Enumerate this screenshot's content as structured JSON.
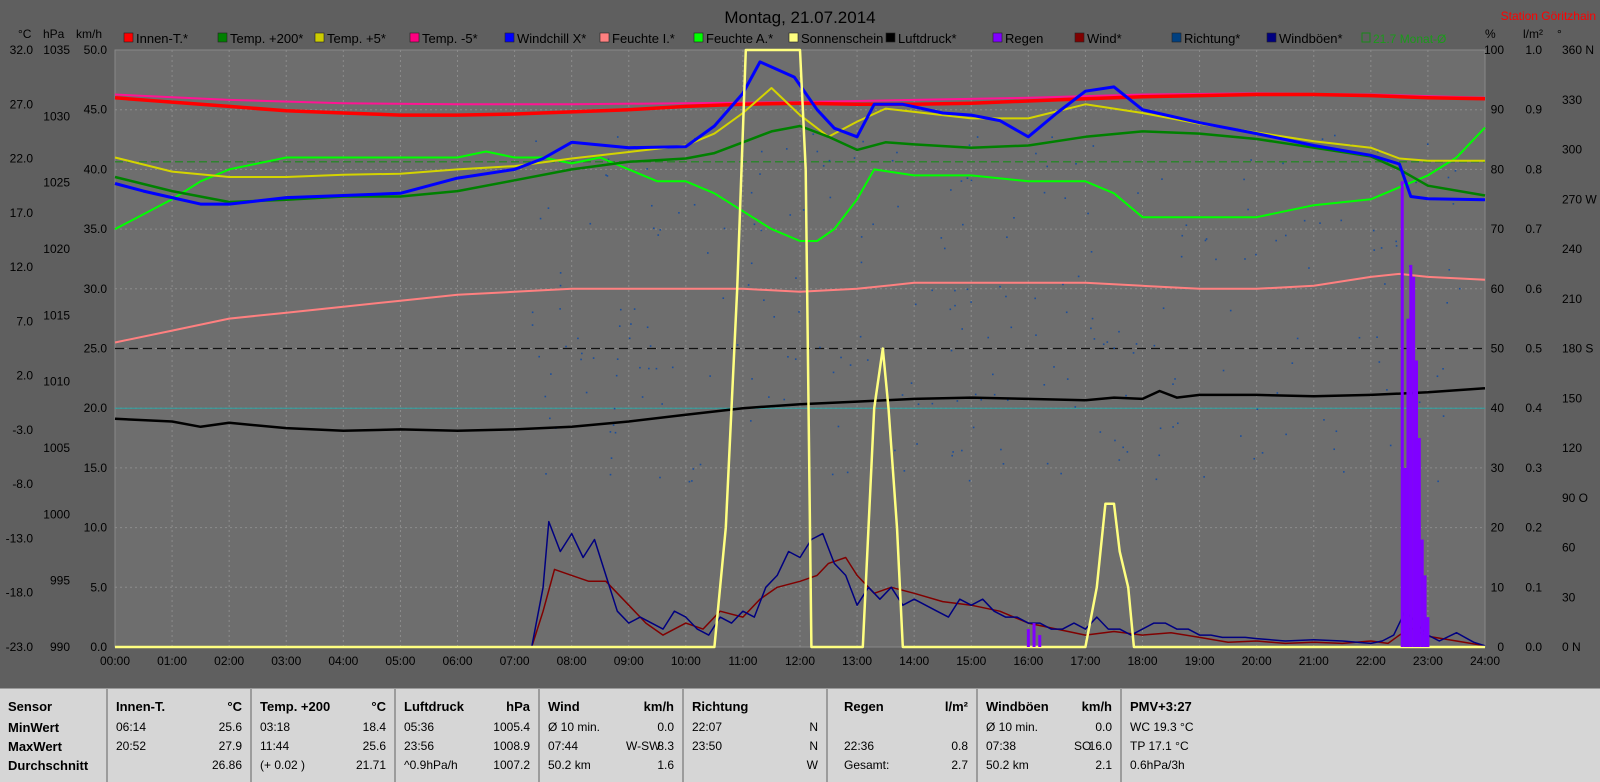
{
  "chart_data": {
    "type": "line",
    "title": "Montag, 21.07.2014",
    "station": "Station Göritzhain",
    "x_ticks": [
      "00:00",
      "01:00",
      "02:00",
      "03:00",
      "04:00",
      "05:00",
      "06:00",
      "07:00",
      "08:00",
      "09:00",
      "10:00",
      "11:00",
      "12:00",
      "13:00",
      "14:00",
      "15:00",
      "16:00",
      "17:00",
      "18:00",
      "19:00",
      "20:00",
      "21:00",
      "22:00",
      "23:00",
      "24:00"
    ],
    "axes": {
      "temp": {
        "unit": "°C",
        "ticks": [
          "32.0",
          "27.0",
          "22.0",
          "17.0",
          "12.0",
          "7.0",
          "2.0",
          "-3.0",
          "-8.0",
          "-13.0",
          "-18.0",
          "-23.0"
        ],
        "range": [
          -23,
          32
        ]
      },
      "pressure": {
        "unit": "hPa",
        "ticks": [
          "1035",
          "1030",
          "1025",
          "1020",
          "1015",
          "1010",
          "1005",
          "1000",
          "995",
          "990"
        ],
        "range": [
          990,
          1035
        ]
      },
      "wind": {
        "unit": "km/h",
        "ticks": [
          "50.0",
          "45.0",
          "40.0",
          "35.0",
          "30.0",
          "25.0",
          "20.0",
          "15.0",
          "10.0",
          "5.0",
          "0.0"
        ],
        "range": [
          0,
          50
        ]
      },
      "humidity": {
        "unit": "%",
        "ticks": [
          "100",
          "90",
          "80",
          "70",
          "60",
          "50",
          "40",
          "30",
          "20",
          "10",
          "0"
        ],
        "range": [
          0,
          100
        ]
      },
      "rain": {
        "unit": "l/m²",
        "ticks": [
          "1.0",
          "0.9",
          "0.8",
          "0.7",
          "0.6",
          "0.5",
          "0.4",
          "0.3",
          "0.2",
          "0.1",
          "0.0"
        ],
        "range": [
          0,
          1
        ]
      },
      "direction": {
        "unit": "°",
        "ticks": [
          "360 N",
          "330",
          "300",
          "270 W",
          "240",
          "210",
          "180 S",
          "150",
          "120",
          "90 O",
          "60",
          "30",
          "0 N"
        ],
        "range": [
          0,
          360
        ]
      }
    },
    "legend": [
      {
        "name": "Innen-T.*",
        "color": "#ff0000"
      },
      {
        "name": "Temp. +200*",
        "color": "#008000"
      },
      {
        "name": "Temp. +5*",
        "color": "#cccc00"
      },
      {
        "name": "Temp. -5*",
        "color": "#ff0080"
      },
      {
        "name": "Windchill X*",
        "color": "#0000ff"
      },
      {
        "name": "Feuchte I.*",
        "color": "#ff8080"
      },
      {
        "name": "Feuchte A.*",
        "color": "#00ff00"
      },
      {
        "name": "Sonnenschein",
        "color": "#ffff80"
      },
      {
        "name": "Luftdruck*",
        "color": "#000000"
      },
      {
        "name": "Regen",
        "color": "#8000ff"
      },
      {
        "name": "Wind*",
        "color": "#800000"
      },
      {
        "name": "Richtung*",
        "color": "#004080"
      },
      {
        "name": "Windböen*",
        "color": "#000080"
      }
    ],
    "monthly_avg_label": "21.7 Monat-Ø",
    "monthly_avg_temp": 21.7,
    "series": [
      {
        "name": "Innen-T.*",
        "axis": "temp",
        "color": "#ff0000",
        "width": 3.5,
        "x": [
          0,
          1,
          2,
          3,
          4,
          5,
          6,
          7,
          8,
          9,
          10,
          11,
          12,
          13,
          14,
          15,
          16,
          17,
          18,
          19,
          20,
          21,
          22,
          23,
          24
        ],
        "y": [
          27.6,
          27.2,
          26.8,
          26.4,
          26.2,
          26.0,
          26.0,
          26.1,
          26.3,
          26.5,
          26.8,
          27.0,
          27.1,
          27.0,
          27.0,
          27.1,
          27.3,
          27.5,
          27.7,
          27.8,
          27.9,
          27.9,
          27.8,
          27.6,
          27.5
        ]
      },
      {
        "name": "Temp. -5*",
        "axis": "temp",
        "color": "#ff1493",
        "width": 2,
        "x": [
          0,
          2,
          4,
          6,
          8,
          10,
          12,
          14,
          16,
          18,
          20,
          22,
          24
        ],
        "y": [
          27.9,
          27.4,
          27.1,
          27.0,
          27.0,
          27.1,
          27.2,
          27.4,
          27.6,
          27.9,
          28.0,
          27.9,
          27.6
        ]
      },
      {
        "name": "Temp. +200*",
        "axis": "temp",
        "color": "#008000",
        "width": 2.5,
        "x": [
          0,
          1,
          2,
          3,
          4,
          5,
          6,
          7,
          8,
          9,
          10,
          10.5,
          11,
          11.5,
          12,
          12.5,
          13,
          13.5,
          14,
          15,
          16,
          17,
          18,
          19,
          20,
          21,
          22,
          22.5,
          23,
          24
        ],
        "y": [
          20.3,
          19.0,
          18.0,
          18.2,
          18.5,
          18.5,
          19.0,
          20.0,
          21.0,
          21.7,
          22.0,
          22.5,
          23.5,
          24.5,
          25.0,
          24.0,
          22.8,
          23.5,
          23.3,
          23.0,
          23.2,
          24.0,
          24.5,
          24.3,
          23.8,
          23.0,
          22.2,
          21.0,
          19.5,
          18.6
        ]
      },
      {
        "name": "Temp. +5*",
        "axis": "temp",
        "color": "#d4d400",
        "width": 2,
        "x": [
          0,
          1,
          2,
          3,
          4,
          5,
          6,
          7,
          8,
          9,
          10,
          10.5,
          11,
          11.5,
          12,
          12.5,
          13,
          13.5,
          14,
          15,
          16,
          17,
          18,
          19,
          20,
          21,
          22,
          22.5,
          23,
          24
        ],
        "y": [
          22.1,
          20.8,
          20.3,
          20.3,
          20.5,
          20.6,
          21.0,
          21.3,
          22.0,
          22.6,
          23.2,
          24.3,
          26.2,
          28.5,
          26.0,
          24.0,
          25.4,
          26.6,
          26.3,
          25.7,
          25.7,
          27.0,
          26.2,
          25.2,
          24.4,
          23.6,
          23.0,
          22.0,
          21.8,
          21.8
        ]
      },
      {
        "name": "Windchill X*",
        "axis": "temp",
        "color": "#0000ff",
        "width": 3,
        "x": [
          0,
          0.5,
          1,
          1.5,
          2,
          2.5,
          3,
          4,
          5,
          6,
          7,
          7.5,
          8,
          9,
          10,
          10.5,
          11,
          11.3,
          11.6,
          11.9,
          12.3,
          12.6,
          13,
          13.3,
          13.8,
          14.5,
          15,
          15.5,
          16,
          16.5,
          17,
          17.5,
          18,
          19,
          20,
          21,
          22,
          22.5,
          22.7,
          23,
          24
        ],
        "y": [
          19.7,
          19.0,
          18.4,
          17.8,
          17.8,
          18.1,
          18.4,
          18.6,
          18.8,
          20.2,
          21.0,
          22.0,
          23.5,
          23.0,
          23.1,
          25.0,
          28.0,
          30.9,
          30.2,
          29.5,
          26.5,
          24.8,
          24.0,
          27.0,
          27.0,
          26.2,
          26.0,
          25.5,
          24.0,
          26.2,
          28.2,
          28.6,
          26.5,
          25.3,
          24.3,
          23.2,
          22.3,
          21.5,
          18.5,
          18.3,
          18.2
        ]
      },
      {
        "name": "Feuchte A.*",
        "axis": "humidity",
        "color": "#00ff00",
        "width": 2,
        "x": [
          0,
          1,
          1.5,
          2,
          3,
          4,
          5,
          5.5,
          6,
          6.5,
          7,
          7.5,
          8,
          8.5,
          9,
          9.5,
          10,
          10.5,
          11,
          11.5,
          12,
          12.3,
          12.6,
          13,
          13.3,
          14,
          15,
          16,
          17,
          17.5,
          18,
          19,
          20,
          21,
          22,
          22.5,
          23,
          23.5,
          24
        ],
        "y": [
          70,
          75,
          78,
          80,
          82,
          82,
          82,
          82,
          82,
          83,
          82,
          82,
          81,
          82,
          80,
          78,
          78,
          76,
          73,
          70,
          68,
          68,
          70,
          75,
          80,
          79,
          79,
          78,
          78,
          76,
          72,
          72,
          72,
          74,
          75,
          77,
          79,
          82,
          87
        ]
      },
      {
        "name": "Feuchte I.*",
        "axis": "humidity",
        "color": "#ff8080",
        "width": 2,
        "x": [
          0,
          1,
          2,
          3,
          4,
          5,
          6,
          7,
          8,
          9,
          10,
          11,
          12,
          13,
          14,
          15,
          16,
          17,
          18,
          19,
          20,
          21,
          22,
          22.5,
          23,
          24
        ],
        "y": [
          51,
          53,
          55,
          56,
          57,
          58,
          59,
          59.5,
          60,
          60,
          60,
          60,
          59.5,
          60,
          61,
          61,
          61,
          61,
          60.5,
          60,
          60,
          60.5,
          62,
          62.5,
          62,
          61.5
        ]
      },
      {
        "name": "Luftdruck*",
        "axis": "pressure",
        "color": "#000000",
        "width": 2.5,
        "x": [
          0,
          1,
          1.5,
          2,
          3,
          4,
          5,
          6,
          7,
          8,
          9,
          10,
          11,
          12,
          13,
          14,
          15,
          16,
          17,
          17.5,
          18,
          18.3,
          18.6,
          19,
          20,
          21,
          22,
          23,
          24
        ],
        "y": [
          1007.2,
          1007.0,
          1006.6,
          1006.9,
          1006.5,
          1006.3,
          1006.4,
          1006.3,
          1006.4,
          1006.6,
          1007.0,
          1007.5,
          1008.0,
          1008.3,
          1008.5,
          1008.7,
          1008.8,
          1008.7,
          1008.6,
          1008.8,
          1008.7,
          1009.3,
          1008.8,
          1009.0,
          1009.0,
          1008.9,
          1009.0,
          1009.2,
          1009.5
        ]
      },
      {
        "name": "Sonnenschein",
        "axis": "wind",
        "color": "#ffff80",
        "width": 2.5,
        "x": [
          0,
          10.5,
          10.7,
          10.9,
          11.05,
          11.2,
          11.5,
          11.8,
          12.0,
          12.1,
          12.2,
          13.1,
          13.2,
          13.3,
          13.45,
          13.55,
          13.7,
          13.8,
          14.0,
          17.0,
          17.2,
          17.35,
          17.5,
          17.6,
          17.75,
          17.85,
          18.0,
          24
        ],
        "y": [
          0,
          0,
          10,
          30,
          50,
          50,
          50,
          50,
          50,
          40,
          0,
          0,
          10,
          20,
          25,
          20,
          10,
          0,
          0,
          0,
          5,
          12,
          12,
          8,
          5,
          0,
          0,
          0
        ]
      },
      {
        "name": "Wind*",
        "axis": "wind",
        "color": "#800000",
        "width": 1.5,
        "x": [
          0,
          7.3,
          7.5,
          7.7,
          8,
          8.3,
          8.6,
          9,
          9.3,
          9.6,
          10,
          10.3,
          10.6,
          11,
          11.3,
          11.6,
          12,
          12.3,
          12.5,
          12.8,
          13,
          13.3,
          13.6,
          14,
          14.5,
          15,
          15.5,
          16,
          16.5,
          17,
          17.5,
          18,
          18.5,
          19,
          19.5,
          20,
          20.5,
          21,
          21.5,
          22,
          22.3,
          22.5,
          22.7,
          23,
          23.5,
          24
        ],
        "y": [
          0,
          0,
          3,
          6.5,
          6,
          5.5,
          5.5,
          3.5,
          2,
          1,
          2,
          1.5,
          3,
          2.5,
          4,
          5,
          5.5,
          6,
          7,
          7.5,
          6,
          4.5,
          5,
          4.5,
          3.8,
          3.5,
          3.0,
          2.0,
          1.5,
          1.0,
          1.3,
          1.0,
          1.2,
          0.8,
          0.4,
          0.5,
          0.3,
          0.4,
          0.3,
          0.5,
          0.3,
          1.0,
          1.6,
          0.9,
          0.5,
          0.1
        ]
      },
      {
        "name": "Windböen*",
        "axis": "wind",
        "color": "#000080",
        "width": 1.5,
        "x": [
          0,
          7.3,
          7.5,
          7.6,
          7.8,
          8.0,
          8.2,
          8.4,
          8.6,
          8.8,
          9.0,
          9.2,
          9.4,
          9.6,
          9.8,
          10.0,
          10.2,
          10.4,
          10.6,
          10.8,
          11.0,
          11.2,
          11.4,
          11.6,
          11.8,
          12.0,
          12.2,
          12.4,
          12.6,
          12.8,
          13.0,
          13.2,
          13.4,
          13.6,
          13.8,
          14.0,
          14.2,
          14.4,
          14.6,
          14.8,
          15.0,
          15.2,
          15.4,
          15.6,
          15.8,
          16.0,
          16.2,
          16.4,
          16.6,
          16.8,
          17.0,
          17.2,
          17.4,
          17.6,
          17.8,
          18.0,
          18.2,
          18.4,
          18.6,
          18.8,
          19.0,
          19.2,
          19.4,
          19.6,
          19.8,
          20.0,
          20.5,
          21.0,
          21.5,
          22.0,
          22.2,
          22.4,
          22.6,
          22.8,
          23.0,
          23.2,
          23.5,
          23.8,
          24
        ],
        "y": [
          0,
          0,
          5,
          10.5,
          8,
          9.5,
          7.5,
          9,
          6,
          3,
          2,
          2.5,
          2,
          1.5,
          3,
          2.5,
          1.5,
          1,
          2.5,
          2,
          3,
          2.5,
          5,
          6,
          8,
          7.5,
          9,
          9.5,
          7,
          6,
          3.5,
          5,
          4,
          5,
          3.5,
          4,
          3.5,
          3,
          2.5,
          4,
          3.5,
          4,
          3,
          2.5,
          2.5,
          2,
          2,
          1.5,
          1.5,
          2,
          1.5,
          2.5,
          1.5,
          1.5,
          1,
          1.5,
          2,
          2,
          1.5,
          1.5,
          1,
          1,
          0.8,
          0.8,
          0.8,
          0.7,
          0.5,
          0.6,
          0.5,
          0.3,
          0.5,
          1,
          3,
          2,
          1,
          0.5,
          1.2,
          0.4,
          0.1
        ]
      },
      {
        "name": "Regen",
        "axis": "rain",
        "color": "#8000ff",
        "type": "bars",
        "x": [
          16.0,
          16.1,
          16.2,
          22.55,
          22.6,
          22.65,
          22.7,
          22.75,
          22.8,
          22.85,
          22.9,
          22.95,
          23.0
        ],
        "y": [
          0.03,
          0.04,
          0.02,
          0.78,
          0.3,
          0.55,
          0.64,
          0.62,
          0.48,
          0.35,
          0.18,
          0.12,
          0.05
        ]
      }
    ],
    "direction_points": {
      "count": 260,
      "hour_range": [
        7.3,
        24
      ],
      "deg_range": [
        100,
        310
      ]
    }
  },
  "stats": {
    "sensor": {
      "header": "Sensor",
      "rows": [
        "MinWert",
        "MaxWert",
        "Durchschnitt"
      ]
    },
    "innen": {
      "header": "Innen-T.",
      "unit": "°C",
      "rows": [
        [
          "06:14",
          "25.6"
        ],
        [
          "20:52",
          "27.9"
        ],
        [
          "",
          "26.86"
        ]
      ]
    },
    "temp200": {
      "header": "Temp. +200",
      "unit": "°C",
      "rows": [
        [
          "03:18",
          "18.4"
        ],
        [
          "11:44",
          "25.6"
        ],
        [
          "(+ 0.02 )",
          "21.71"
        ]
      ]
    },
    "druck": {
      "header": "Luftdruck",
      "unit": "hPa",
      "rows": [
        [
          "05:36",
          "1005.4"
        ],
        [
          "23:56",
          "1008.9"
        ],
        [
          "^0.9hPa/h",
          "1007.2"
        ]
      ]
    },
    "wind": {
      "header": "Wind",
      "unit": "km/h",
      "rows": [
        [
          "Ø 10 min.",
          "",
          "0.0"
        ],
        [
          "07:44",
          "W-SW",
          "8.3"
        ],
        [
          "50.2 km",
          "",
          "1.6"
        ]
      ]
    },
    "richtung": {
      "header": "Richtung",
      "rows": [
        [
          "22:07",
          "N"
        ],
        [
          "23:50",
          "N"
        ],
        [
          "",
          "W"
        ]
      ]
    },
    "regen": {
      "header": "Regen",
      "unit": "l/m²",
      "rows": [
        [
          "",
          ""
        ],
        [
          "22:36",
          "0.8"
        ],
        [
          "Gesamt:",
          "2.7"
        ]
      ]
    },
    "boeen": {
      "header": "Windböen",
      "unit": "km/h",
      "rows": [
        [
          "Ø 10 min.",
          "",
          "0.0"
        ],
        [
          "07:38",
          "SO",
          "16.0"
        ],
        [
          "50.2 km",
          "",
          "2.1"
        ]
      ]
    },
    "pmv": {
      "header": "PMV+3:27",
      "rows": [
        "WC 19.3 °C",
        "TP 17.1 °C",
        "0.6hPa/3h"
      ]
    }
  }
}
